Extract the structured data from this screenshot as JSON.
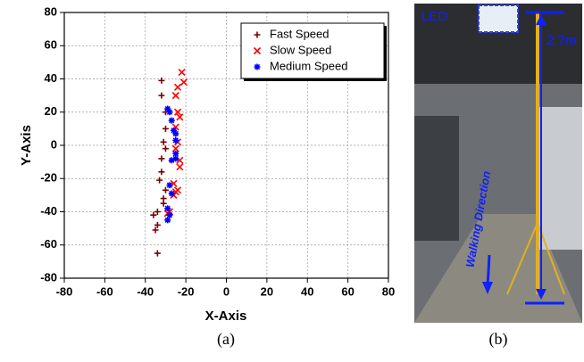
{
  "chart_data": {
    "type": "scatter",
    "xlabel": "X-Axis",
    "ylabel": "Y-Axis",
    "xlim": [
      -80,
      80
    ],
    "ylim": [
      -80,
      80
    ],
    "xticks": [
      -80,
      -60,
      -40,
      -20,
      0,
      20,
      40,
      60,
      80
    ],
    "yticks": [
      -80,
      -60,
      -40,
      -20,
      0,
      20,
      40,
      60,
      80
    ],
    "grid": true,
    "legend": "upper right",
    "series": [
      {
        "name": "Fast Speed",
        "color": "#7b0000",
        "marker": "plus",
        "x": [
          -32,
          -32,
          -30,
          -30,
          -31,
          -30,
          -32,
          -32,
          -33,
          -30,
          -31,
          -31,
          -34,
          -36,
          -34,
          -35,
          -34
        ],
        "y": [
          39,
          30,
          20,
          10,
          2,
          -2,
          -8,
          -16,
          -21,
          -27,
          -32,
          -35,
          -40,
          -42,
          -48,
          -51,
          -65
        ]
      },
      {
        "name": "Slow Speed",
        "color": "#ff0000",
        "marker": "cross",
        "x": [
          -22,
          -21,
          -24,
          -25,
          -24,
          -23,
          -25,
          -24,
          -25,
          -23,
          -23,
          -26,
          -24,
          -26,
          -25,
          -28,
          -29
        ],
        "y": [
          44,
          38,
          35,
          30,
          20,
          17,
          11,
          2,
          -2,
          -9,
          -13,
          -23,
          -27,
          -30,
          -28,
          -40,
          -41
        ]
      },
      {
        "name": "Medium Speed",
        "color": "#0000ff",
        "marker": "star",
        "x": [
          -29,
          -28,
          -27,
          -26,
          -25,
          -25,
          -25,
          -27,
          -25,
          -28,
          -27,
          -29,
          -28,
          -29
        ],
        "y": [
          22,
          20,
          15,
          9,
          7,
          3,
          -5,
          -9,
          -8,
          -24,
          -29,
          -38,
          -42,
          -45
        ]
      }
    ]
  },
  "panel_labels": [
    "(a)",
    "(b)"
  ],
  "photo": {
    "labels": [
      "LED",
      "2.7m",
      "Walking Direction"
    ]
  }
}
